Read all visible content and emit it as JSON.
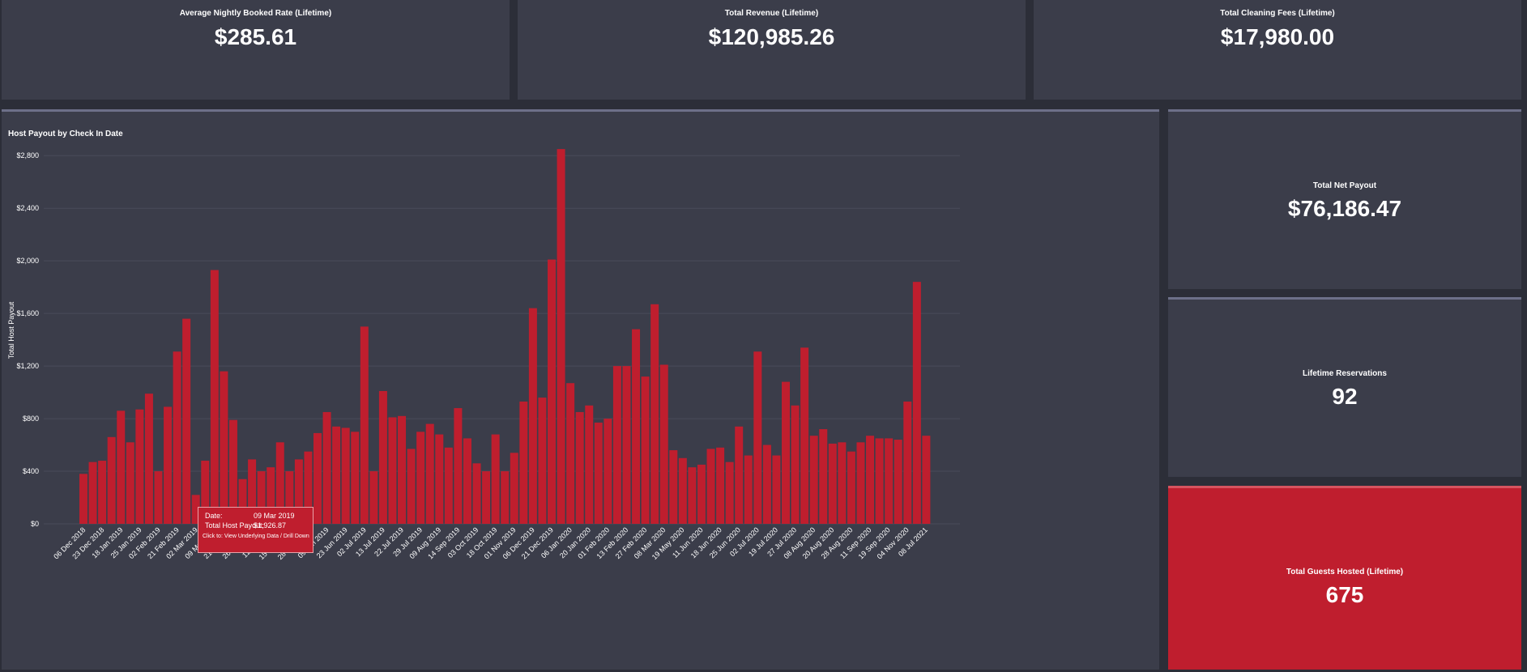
{
  "kpis": {
    "avg_rate": {
      "label": "Average Nightly Booked Rate (Lifetime)",
      "value": "$285.61"
    },
    "total_revenue": {
      "label": "Total Revenue (Lifetime)",
      "value": "$120,985.26"
    },
    "cleaning_fees": {
      "label": "Total Cleaning Fees (Lifetime)",
      "value": "$17,980.00"
    },
    "net_payout": {
      "label": "Total Net Payout",
      "value": "$76,186.47"
    },
    "reservations": {
      "label": "Lifetime Reservations",
      "value": "92"
    },
    "guests": {
      "label": "Total Guests Hosted (Lifetime)",
      "value": "675"
    }
  },
  "colors": {
    "bar": "#bf1e2e",
    "panel": "#3b3d4a",
    "background": "#2c2e38",
    "grid": "#4a4c5a"
  },
  "tooltip": {
    "date_label": "Date:",
    "date_value": "09 Mar 2019",
    "payout_label": "Total Host Payout:",
    "payout_value": "$1,926.87",
    "hint": "Click to: View Underlying Data / Drill Down"
  },
  "chart_data": {
    "type": "bar",
    "title": "Host Payout by Check In Date",
    "ylabel": "Total Host Payout",
    "xlabel": "",
    "ylim": [
      0,
      2900
    ],
    "yticks": [
      0,
      400,
      800,
      1200,
      1600,
      2000,
      2400,
      2800
    ],
    "ytick_labels": [
      "$0",
      "$400",
      "$800",
      "$1,200",
      "$1,600",
      "$2,000",
      "$2,400",
      "$2,800"
    ],
    "grid": true,
    "xtick_labels": [
      "06 Dec 2018",
      "23 Dec 2018",
      "18 Jan 2019",
      "25 Jan 2019",
      "02 Feb 2019",
      "21 Feb 2019",
      "02 Mar 2019",
      "09 Mar 2019",
      "21 Mar 2019",
      "26 Mar 2019",
      "12 Apr 2019",
      "15 May 2019",
      "28 May 2019",
      "09 Jun 2019",
      "23 Jun 2019",
      "02 Jul 2019",
      "13 Jul 2019",
      "22 Jul 2019",
      "29 Jul 2019",
      "09 Aug 2019",
      "14 Sep 2019",
      "03 Oct 2019",
      "18 Oct 2019",
      "01 Nov 2019",
      "06 Dec 2019",
      "21 Dec 2019",
      "06 Jan 2020",
      "20 Jan 2020",
      "01 Feb 2020",
      "13 Feb 2020",
      "27 Feb 2020",
      "08 Mar 2020",
      "19 May 2020",
      "11 Jun 2020",
      "18 Jun 2020",
      "25 Jun 2020",
      "02 Jul 2020",
      "19 Jul 2020",
      "27 Jul 2020",
      "08 Aug 2020",
      "20 Aug 2020",
      "28 Aug 2020",
      "11 Sep 2020",
      "19 Sep 2020",
      "04 Nov 2020",
      "08 Jul 2021"
    ],
    "values": [
      380,
      470,
      480,
      660,
      860,
      620,
      870,
      990,
      400,
      890,
      1310,
      1560,
      220,
      480,
      1930,
      1160,
      790,
      340,
      490,
      400,
      430,
      620,
      400,
      490,
      550,
      690,
      850,
      740,
      730,
      700,
      1500,
      400,
      1010,
      810,
      820,
      570,
      700,
      760,
      680,
      580,
      880,
      650,
      460,
      400,
      680,
      400,
      540,
      930,
      1640,
      960,
      2010,
      2850,
      1070,
      850,
      900,
      770,
      800,
      1200,
      1200,
      1480,
      1120,
      1670,
      1210,
      560,
      500,
      430,
      450,
      570,
      580,
      470,
      740,
      520,
      1310,
      600,
      520,
      1080,
      900,
      1340,
      670,
      720,
      610,
      620,
      550,
      620,
      670,
      650,
      650,
      640,
      930,
      1840,
      670
    ]
  }
}
